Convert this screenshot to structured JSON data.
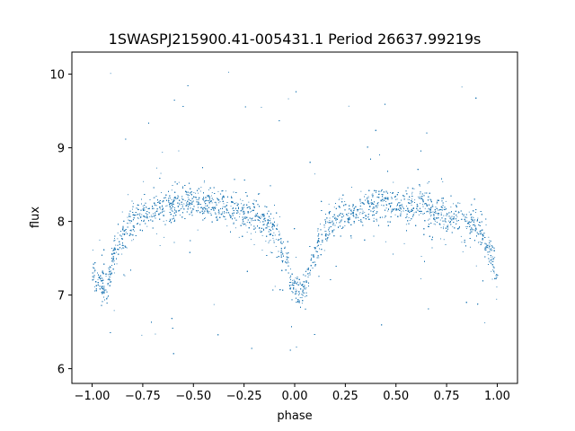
{
  "chart_data": {
    "type": "scatter",
    "title": "1SWASPJ215900.41-005431.1 Period 26637.99219s",
    "xlabel": "phase",
    "ylabel": "flux",
    "xlim": [
      -1.1,
      1.1
    ],
    "ylim": [
      5.8,
      10.3
    ],
    "x_ticks": [
      -1.0,
      -0.75,
      -0.5,
      -0.25,
      0.0,
      0.25,
      0.5,
      0.75,
      1.0
    ],
    "x_tick_labels": [
      "−1.00",
      "−0.75",
      "−0.50",
      "−0.25",
      "0.00",
      "0.25",
      "0.50",
      "0.75",
      "1.00"
    ],
    "y_ticks": [
      6,
      7,
      8,
      9,
      10
    ],
    "y_tick_labels": [
      "6",
      "7",
      "8",
      "9",
      "10"
    ],
    "grid": false,
    "marker_color": "#1f77b4",
    "series": [
      {
        "phase": [
          -1.0,
          -0.975,
          -0.95,
          -0.925,
          -0.9,
          -0.875,
          -0.85,
          -0.825,
          -0.8,
          -0.775,
          -0.75,
          -0.7,
          -0.65,
          -0.6,
          -0.55,
          -0.5,
          -0.45,
          -0.4,
          -0.35,
          -0.3,
          -0.25,
          -0.2,
          -0.15,
          -0.1,
          -0.075,
          -0.05,
          -0.025,
          0.0,
          0.025,
          0.05,
          0.075,
          0.1,
          0.125,
          0.15,
          0.175,
          0.2,
          0.25,
          0.3,
          0.35,
          0.4,
          0.45,
          0.5,
          0.55,
          0.6,
          0.65,
          0.7,
          0.75,
          0.8,
          0.85,
          0.9,
          0.925,
          0.95,
          0.975,
          1.0
        ],
        "flux": [
          7.35,
          7.15,
          7.12,
          7.2,
          7.45,
          7.7,
          7.85,
          7.95,
          8.0,
          8.05,
          8.1,
          8.15,
          8.2,
          8.22,
          8.25,
          8.25,
          8.25,
          8.22,
          8.2,
          8.15,
          8.1,
          8.05,
          8.0,
          7.9,
          7.75,
          7.5,
          7.25,
          7.1,
          7.05,
          7.1,
          7.3,
          7.6,
          7.8,
          7.9,
          7.95,
          8.0,
          8.1,
          8.15,
          8.2,
          8.22,
          8.25,
          8.25,
          8.25,
          8.22,
          8.2,
          8.15,
          8.1,
          8.05,
          8.0,
          7.95,
          7.85,
          7.65,
          7.45,
          7.2
        ]
      }
    ]
  }
}
